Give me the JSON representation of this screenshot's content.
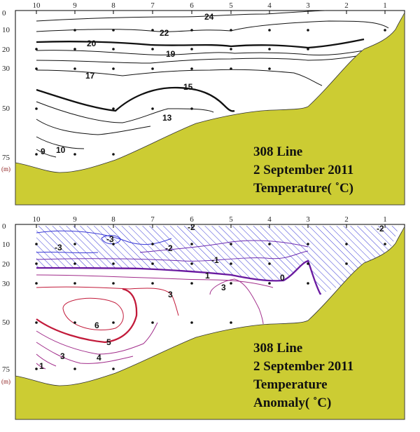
{
  "colors": {
    "terrain": "#cccc33",
    "hatch": "#3a3ad6",
    "contour": "#111111",
    "anomaly_warm": "#c21a3a",
    "anomaly_cool": "#7a2aa8"
  },
  "stations": [
    "10",
    "9",
    "8",
    "7",
    "6",
    "5",
    "4",
    "3",
    "2",
    "1"
  ],
  "depths": [
    "0",
    "10",
    "20",
    "30",
    "50",
    "75"
  ],
  "unit": "(m)",
  "panel1": {
    "title_lines": [
      "308 Line",
      "2 September 2011",
      "Temperature( ˚C)"
    ],
    "contour_labels": [
      "24",
      "22",
      "20",
      "19",
      "17",
      "15",
      "13",
      "10",
      "9"
    ]
  },
  "panel2": {
    "title_lines": [
      "308 Line",
      "2 September 2011",
      "Temperature",
      "Anomaly( ˚C)"
    ],
    "contour_labels": [
      "-2",
      "-2",
      "-3",
      "-3",
      "-2",
      "-1",
      "1",
      "0",
      "3",
      "3",
      "6",
      "5",
      "4",
      "3",
      "1"
    ]
  }
}
